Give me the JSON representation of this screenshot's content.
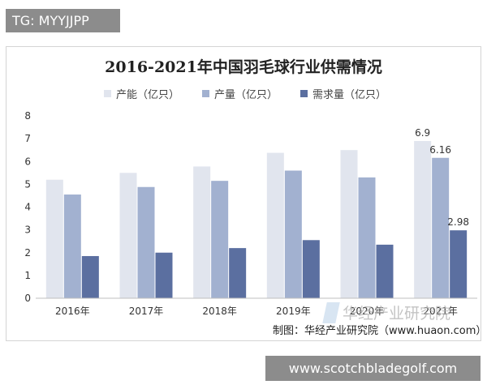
{
  "overlay_tag": "TG: MYYJJPP",
  "source_note": "制图：华经产业研究院（www.huaon.com）",
  "watermark_text": "华经产业研究院",
  "site_caption": "www.scotchbladegolf.com",
  "chart_data": {
    "type": "bar",
    "title": "2016-2021年中国羽毛球行业供需情况",
    "categories": [
      "2016年",
      "2017年",
      "2018年",
      "2019年",
      "2020年",
      "2021年"
    ],
    "series": [
      {
        "name": "产能（亿只）",
        "color": "#e1e5ee",
        "values": [
          5.2,
          5.5,
          5.78,
          6.38,
          6.5,
          6.9
        ],
        "data_labels": [
          null,
          null,
          null,
          null,
          null,
          "6.9"
        ]
      },
      {
        "name": "产量（亿只）",
        "color": "#a2b1d0",
        "values": [
          4.55,
          4.88,
          5.15,
          5.6,
          5.3,
          6.16
        ],
        "data_labels": [
          null,
          null,
          null,
          null,
          null,
          "6.16"
        ]
      },
      {
        "name": "需求量（亿只）",
        "color": "#5b6fa0",
        "values": [
          1.85,
          2.0,
          2.2,
          2.55,
          2.35,
          2.98
        ],
        "data_labels": [
          null,
          null,
          null,
          null,
          null,
          "2.98"
        ]
      }
    ],
    "yticks": [
      "0",
      "1",
      "2",
      "3",
      "4",
      "5",
      "6",
      "7",
      "8"
    ],
    "ylim": [
      0,
      8
    ],
    "grid": false,
    "legend_position": "top"
  }
}
